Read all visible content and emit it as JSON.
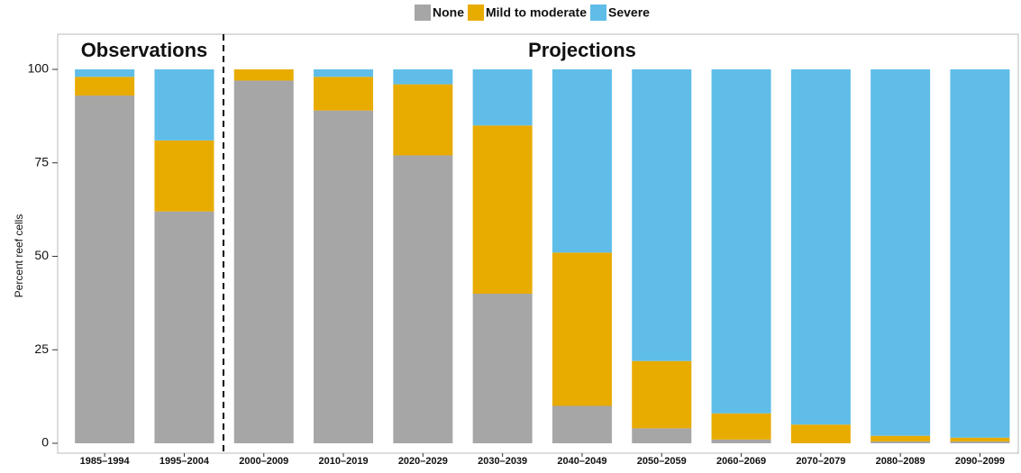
{
  "chart_data": {
    "type": "stacked_bar",
    "y_label": "Percent reef cells",
    "annotations": [
      "Observations",
      "Projections"
    ],
    "categories": [
      "1985–1994",
      "1995–2004",
      "2000–2009",
      "2010–2019",
      "2020–2029",
      "2030–2039",
      "2040–2049",
      "2050–2059",
      "2060–2069",
      "2070–2079",
      "2080–2089",
      "2090–2099"
    ],
    "series": [
      {
        "name": "None",
        "color": "#a6a6a6",
        "values": [
          93,
          62,
          97,
          89,
          77,
          40,
          10,
          4,
          1,
          0,
          0.5,
          0.5
        ]
      },
      {
        "name": "Mild to moderate",
        "color": "#e8ab00",
        "values": [
          5,
          19,
          3,
          9,
          19,
          45,
          41,
          18,
          7,
          5,
          1.5,
          1
        ]
      },
      {
        "name": "Severe",
        "color": "#5fbde8",
        "values": [
          2,
          19,
          0,
          2,
          4,
          15,
          49,
          78,
          92,
          95,
          98,
          98.5
        ]
      }
    ],
    "ylim": [
      0,
      100
    ],
    "yticks": [
      0,
      25,
      50,
      75,
      100
    ],
    "legend": "top"
  }
}
